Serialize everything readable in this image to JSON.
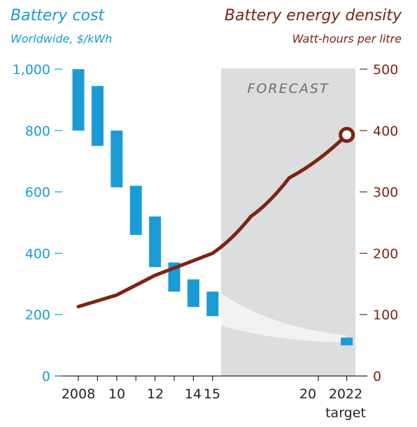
{
  "left_title": "Battery cost",
  "left_subtitle": "Worldwide, $/kWh",
  "right_title": "Battery energy density",
  "right_subtitle": "Watt-hours per litre",
  "forecast_label": "FORECAST",
  "colors": {
    "cost": "#1a9bd6",
    "density": "#7a2512",
    "forecast_band": "#dcdddf",
    "forecast_trend": "#f2f2f3"
  },
  "chart_data": {
    "type": "bar",
    "title": "Battery cost / Battery energy density",
    "x_ticks": [
      "2008",
      "10",
      "12",
      "14",
      "15",
      "20",
      "2022",
      "target"
    ],
    "x_range": [
      2006.8,
      2024.0
    ],
    "forecast_range": [
      2015.5,
      2022.5
    ],
    "left_axis": {
      "label": "Worldwide, $/kWh",
      "ticks": [
        "1,000",
        "800",
        "600",
        "400",
        "200",
        "0"
      ],
      "ylim": [
        0,
        1000
      ]
    },
    "right_axis": {
      "label": "Watt-hours per litre",
      "ticks": [
        "500",
        "400",
        "300",
        "200",
        "100",
        "0"
      ],
      "ylim": [
        0,
        500
      ]
    },
    "series": [
      {
        "name": "Battery cost",
        "kind": "range-bar",
        "points": [
          {
            "x": 2008,
            "low": 800,
            "high": 1000
          },
          {
            "x": 2009,
            "low": 750,
            "high": 945
          },
          {
            "x": 2010,
            "low": 615,
            "high": 800
          },
          {
            "x": 2011,
            "low": 460,
            "high": 620
          },
          {
            "x": 2012,
            "low": 355,
            "high": 520
          },
          {
            "x": 2013,
            "low": 275,
            "high": 370
          },
          {
            "x": 2014,
            "low": 225,
            "high": 315
          },
          {
            "x": 2015,
            "low": 195,
            "high": 275
          },
          {
            "x": 2022,
            "low": 100,
            "high": 125
          }
        ]
      },
      {
        "name": "Battery energy density",
        "kind": "line",
        "points": [
          {
            "x": 2008,
            "y": 113
          },
          {
            "x": 2010,
            "y": 132
          },
          {
            "x": 2012,
            "y": 164
          },
          {
            "x": 2015,
            "y": 200
          },
          {
            "x": 2017,
            "y": 260
          },
          {
            "x": 2019,
            "y": 323
          },
          {
            "x": 2022,
            "y": 393
          }
        ],
        "endpoint_marker": {
          "x": 2022,
          "y": 393
        }
      }
    ],
    "grid": false,
    "legend": "none"
  }
}
